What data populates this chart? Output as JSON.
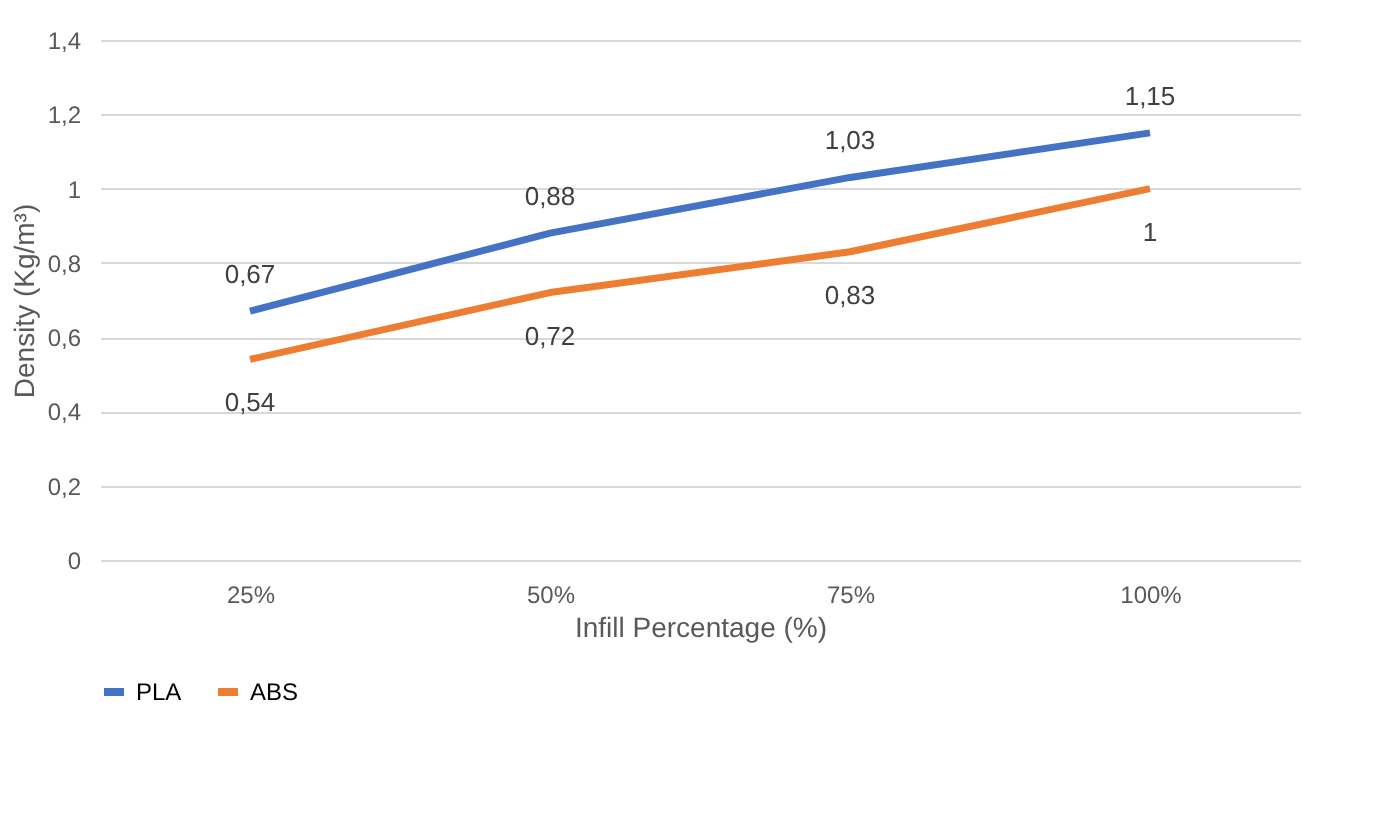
{
  "chart_data": {
    "type": "line",
    "xlabel": "Infill Percentage (%)",
    "ylabel": "Density (Kg/m³)",
    "categories": [
      "25%",
      "50%",
      "75%",
      "100%"
    ],
    "series": [
      {
        "name": "PLA",
        "color": "#4472c4",
        "values": [
          0.67,
          0.88,
          1.03,
          1.15
        ],
        "value_labels": [
          "0,67",
          "0,88",
          "1,03",
          "1,15"
        ]
      },
      {
        "name": "ABS",
        "color": "#ed7d31",
        "values": [
          0.54,
          0.72,
          0.83,
          1.0
        ],
        "value_labels": [
          "0,54",
          "0,72",
          "0,83",
          "1"
        ]
      }
    ],
    "ylim": [
      0,
      1.4
    ],
    "yticks": [
      0,
      {
        "value": 0.2,
        "label": "0,2"
      },
      {
        "value": 0.4,
        "label": "0,4"
      },
      {
        "value": 0.6,
        "label": "0,6"
      },
      {
        "value": 0.8,
        "label": "0,8"
      },
      1,
      {
        "value": 1.2,
        "label": "1,2"
      },
      {
        "value": 1.4,
        "label": "1,4"
      }
    ],
    "grid": "y",
    "legend": "bottom",
    "marker": "none",
    "line_style": "solid"
  }
}
